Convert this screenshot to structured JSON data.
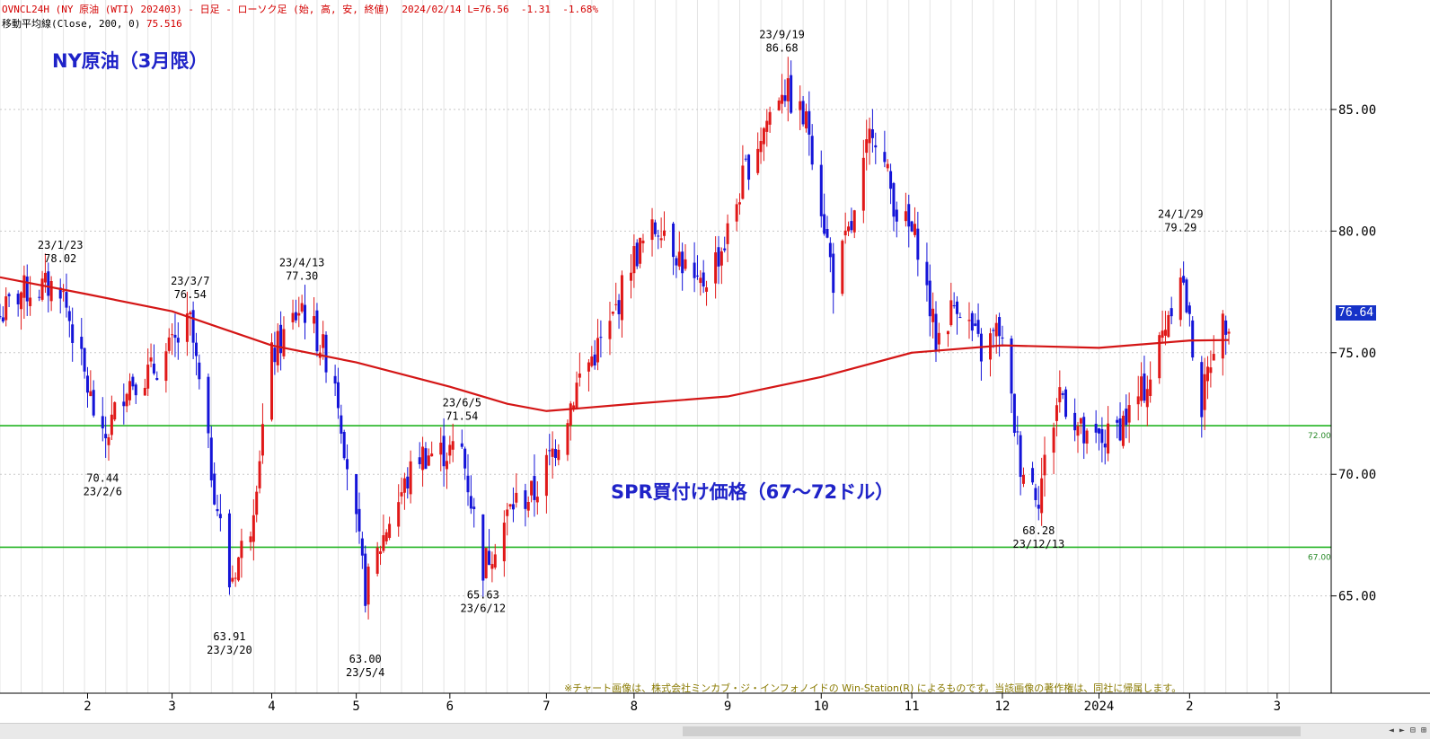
{
  "header": {
    "symbol_line": "OVNCL24H (NY 原油 (WTI) 202403) - 日足 - ローソク足 (始, 高, 安, 終値)",
    "date_info": "2024/02/14 L=76.56  -1.31  -1.68%",
    "ma_line": "移動平均線(Close, 200, 0)",
    "ma_value": "75.516"
  },
  "title": "NY原油（3月限）",
  "spr_label": "SPR買付け価格（67～72ドル）",
  "copyright_note": "※チャート画像は、株式会社ミンカブ・ジ・インフォノイドの Win-Station(R) によるものです。当該画像の著作権は、同社に帰属します。",
  "current_price": "76.64",
  "colors": {
    "up": "#e01818",
    "down": "#1414d8",
    "ma": "#d41616",
    "support": "#22b422",
    "grid": "#c8c8c8"
  },
  "chart_data": {
    "type": "candlestick",
    "x_range": [
      "2023-01-03",
      "2024-03-07"
    ],
    "ylim": [
      61.0,
      89.5
    ],
    "y_ticks": [
      65,
      70,
      75,
      80,
      85
    ],
    "y_tick_labels": [
      "65.00",
      "70.00",
      "75.00",
      "80.00",
      "85.00"
    ],
    "x_tick_labels": [
      {
        "date": "2023-02-01",
        "label": "2"
      },
      {
        "date": "2023-03-01",
        "label": "3"
      },
      {
        "date": "2023-04-03",
        "label": "4"
      },
      {
        "date": "2023-05-01",
        "label": "5"
      },
      {
        "date": "2023-06-01",
        "label": "6"
      },
      {
        "date": "2023-07-03",
        "label": "7"
      },
      {
        "date": "2023-08-01",
        "label": "8"
      },
      {
        "date": "2023-09-01",
        "label": "9"
      },
      {
        "date": "2023-10-02",
        "label": "10"
      },
      {
        "date": "2023-11-01",
        "label": "11"
      },
      {
        "date": "2023-12-01",
        "label": "12"
      },
      {
        "date": "2024-01-02",
        "label": "2024"
      },
      {
        "date": "2024-02-01",
        "label": "2"
      },
      {
        "date": "2024-03-01",
        "label": "3"
      }
    ],
    "horizontal_lines": [
      {
        "value": 72.0,
        "label": "72.00"
      },
      {
        "value": 67.0,
        "label": "67.00"
      }
    ],
    "annotations": [
      {
        "date": "2023-01-23",
        "value": 78.02,
        "text": [
          "23/1/23",
          "78.02"
        ],
        "position": "above"
      },
      {
        "date": "2023-02-06",
        "value": 70.44,
        "text": [
          "70.44",
          "23/2/6"
        ],
        "position": "below"
      },
      {
        "date": "2023-03-07",
        "value": 76.54,
        "text": [
          "23/3/7",
          "76.54"
        ],
        "position": "above"
      },
      {
        "date": "2023-03-20",
        "value": 63.91,
        "text": [
          "63.91",
          "23/3/20"
        ],
        "position": "below"
      },
      {
        "date": "2023-04-13",
        "value": 77.3,
        "text": [
          "23/4/13",
          "77.30"
        ],
        "position": "above"
      },
      {
        "date": "2023-05-04",
        "value": 63.0,
        "text": [
          "63.00",
          "23/5/4"
        ],
        "position": "below"
      },
      {
        "date": "2023-06-05",
        "value": 71.54,
        "text": [
          "23/6/5",
          "71.54"
        ],
        "position": "above"
      },
      {
        "date": "2023-06-12",
        "value": 65.63,
        "text": [
          "65.63",
          "23/6/12"
        ],
        "position": "below"
      },
      {
        "date": "2023-09-19",
        "value": 86.68,
        "text": [
          "23/9/19",
          "86.68"
        ],
        "position": "above"
      },
      {
        "date": "2023-12-13",
        "value": 68.28,
        "text": [
          "68.28",
          "23/12/13"
        ],
        "position": "below"
      },
      {
        "date": "2024-01-29",
        "value": 79.29,
        "text": [
          "24/1/29",
          "79.29"
        ],
        "position": "above"
      }
    ],
    "close_path": [
      [
        "2023-01-03",
        76.5
      ],
      [
        "2023-01-10",
        77.5
      ],
      [
        "2023-01-23",
        77.8
      ],
      [
        "2023-02-06",
        71.2
      ],
      [
        "2023-02-14",
        73.8
      ],
      [
        "2023-02-22",
        74.2
      ],
      [
        "2023-03-01",
        75.2
      ],
      [
        "2023-03-07",
        76.2
      ],
      [
        "2023-03-13",
        71.0
      ],
      [
        "2023-03-20",
        65.5
      ],
      [
        "2023-03-27",
        68.0
      ],
      [
        "2023-04-03",
        74.8
      ],
      [
        "2023-04-13",
        77.0
      ],
      [
        "2023-04-24",
        74.0
      ],
      [
        "2023-05-04",
        65.2
      ],
      [
        "2023-05-12",
        68.2
      ],
      [
        "2023-05-22",
        70.8
      ],
      [
        "2023-06-05",
        71.0
      ],
      [
        "2023-06-12",
        66.2
      ],
      [
        "2023-06-22",
        68.8
      ],
      [
        "2023-06-29",
        69.2
      ],
      [
        "2023-07-07",
        71.5
      ],
      [
        "2023-07-14",
        74.0
      ],
      [
        "2023-07-24",
        76.0
      ],
      [
        "2023-07-31",
        78.8
      ],
      [
        "2023-08-10",
        80.4
      ],
      [
        "2023-08-22",
        77.5
      ],
      [
        "2023-08-31",
        79.5
      ],
      [
        "2023-09-07",
        82.5
      ],
      [
        "2023-09-19",
        86.0
      ],
      [
        "2023-09-28",
        84.2
      ],
      [
        "2023-10-06",
        78.0
      ],
      [
        "2023-10-13",
        80.5
      ],
      [
        "2023-10-19",
        84.5
      ],
      [
        "2023-10-27",
        80.8
      ],
      [
        "2023-11-03",
        79.5
      ],
      [
        "2023-11-09",
        75.5
      ],
      [
        "2023-11-16",
        77.2
      ],
      [
        "2023-11-24",
        75.0
      ],
      [
        "2023-11-30",
        76.0
      ],
      [
        "2023-12-07",
        70.5
      ],
      [
        "2023-12-13",
        69.2
      ],
      [
        "2023-12-20",
        73.5
      ],
      [
        "2023-12-29",
        71.2
      ],
      [
        "2024-01-05",
        71.5
      ],
      [
        "2024-01-12",
        72.5
      ],
      [
        "2024-01-19",
        74.0
      ],
      [
        "2024-01-29",
        78.5
      ],
      [
        "2024-02-05",
        72.8
      ],
      [
        "2024-02-09",
        75.5
      ],
      [
        "2024-02-14",
        76.56
      ]
    ],
    "ma200_path": [
      [
        "2023-01-03",
        78.1
      ],
      [
        "2023-02-01",
        77.4
      ],
      [
        "2023-03-01",
        76.7
      ],
      [
        "2023-04-03",
        75.3
      ],
      [
        "2023-05-01",
        74.6
      ],
      [
        "2023-06-01",
        73.6
      ],
      [
        "2023-06-20",
        72.9
      ],
      [
        "2023-07-03",
        72.6
      ],
      [
        "2023-08-01",
        72.9
      ],
      [
        "2023-09-01",
        73.2
      ],
      [
        "2023-10-02",
        74.0
      ],
      [
        "2023-11-01",
        75.0
      ],
      [
        "2023-12-01",
        75.3
      ],
      [
        "2024-01-02",
        75.2
      ],
      [
        "2024-02-01",
        75.5
      ],
      [
        "2024-02-14",
        75.52
      ]
    ]
  }
}
